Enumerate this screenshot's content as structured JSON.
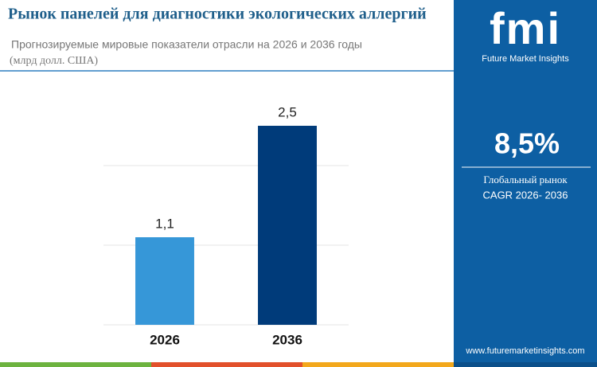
{
  "chart_data": {
    "type": "bar",
    "title": "Рынок панелей для диагностики экологических аллергий",
    "subtitle": "Прогнозируемые мировые показатели отрасли на 2026 и 2036 годы",
    "unit_label": "(млрд долл. США)",
    "categories": [
      "2026",
      "2036"
    ],
    "values": [
      1.1,
      2.5
    ],
    "value_labels": [
      "1,1",
      "2,5"
    ],
    "colors": [
      "#3697d8",
      "#003b7a"
    ],
    "ylim": [
      0,
      2.5
    ],
    "yticks": [
      0,
      1,
      2
    ],
    "ytick_labels": false,
    "grid": true
  },
  "sidebar": {
    "brand": "fmi",
    "brand_name": "Future Market Insights",
    "cagr": "8,5%",
    "cagr_caption_1": "Глобальный рынок",
    "cagr_caption_2": "CAGR 2026- 2036",
    "website": "www.futuremarketinsights.com"
  }
}
